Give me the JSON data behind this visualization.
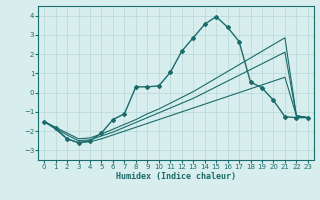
{
  "xlabel": "Humidex (Indice chaleur)",
  "ylabel": "",
  "xlim": [
    -0.5,
    23.5
  ],
  "ylim": [
    -3.5,
    4.5
  ],
  "yticks": [
    -3,
    -2,
    -1,
    0,
    1,
    2,
    3,
    4
  ],
  "xticks": [
    0,
    1,
    2,
    3,
    4,
    5,
    6,
    7,
    8,
    9,
    10,
    11,
    12,
    13,
    14,
    15,
    16,
    17,
    18,
    19,
    20,
    21,
    22,
    23
  ],
  "background_color": "#d8eeee",
  "grid_color": "#b8d8d8",
  "line_color": "#1a6b6b",
  "lines": [
    {
      "x": [
        0,
        1,
        2,
        3,
        4,
        5,
        6,
        7,
        8,
        9,
        10,
        11,
        12,
        13,
        14,
        15,
        16,
        17,
        18,
        19,
        20,
        21,
        22,
        23
      ],
      "y": [
        -1.5,
        -1.9,
        -2.4,
        -2.6,
        -2.55,
        -2.4,
        -2.2,
        -2.0,
        -1.8,
        -1.6,
        -1.4,
        -1.2,
        -1.0,
        -0.8,
        -0.6,
        -0.4,
        -0.2,
        0.0,
        0.2,
        0.4,
        0.6,
        0.8,
        -1.2,
        -1.3
      ],
      "marker": false,
      "lw": 0.8
    },
    {
      "x": [
        0,
        1,
        2,
        3,
        4,
        5,
        6,
        7,
        8,
        9,
        10,
        11,
        12,
        13,
        14,
        15,
        16,
        17,
        18,
        19,
        20,
        21,
        22,
        23
      ],
      "y": [
        -1.5,
        -1.85,
        -2.2,
        -2.5,
        -2.45,
        -2.25,
        -2.05,
        -1.8,
        -1.55,
        -1.3,
        -1.05,
        -0.8,
        -0.55,
        -0.3,
        0.0,
        0.3,
        0.6,
        0.9,
        1.2,
        1.5,
        1.8,
        2.1,
        -1.2,
        -1.3
      ],
      "marker": false,
      "lw": 0.8
    },
    {
      "x": [
        0,
        1,
        2,
        3,
        4,
        5,
        6,
        7,
        8,
        9,
        10,
        11,
        12,
        13,
        14,
        15,
        16,
        17,
        18,
        19,
        20,
        21,
        22,
        23
      ],
      "y": [
        -1.5,
        -1.8,
        -2.1,
        -2.4,
        -2.35,
        -2.15,
        -1.9,
        -1.65,
        -1.4,
        -1.1,
        -0.85,
        -0.55,
        -0.25,
        0.05,
        0.4,
        0.75,
        1.1,
        1.45,
        1.8,
        2.15,
        2.5,
        2.85,
        -1.2,
        -1.3
      ],
      "marker": false,
      "lw": 0.8
    },
    {
      "x": [
        0,
        1,
        2,
        3,
        4,
        5,
        6,
        7,
        8,
        9,
        10,
        11,
        12,
        13,
        14,
        15,
        16,
        17,
        18,
        19,
        20,
        21,
        22,
        23
      ],
      "y": [
        -1.5,
        -1.85,
        -2.4,
        -2.6,
        -2.5,
        -2.1,
        -1.4,
        -1.1,
        0.3,
        0.3,
        0.35,
        1.05,
        2.15,
        2.85,
        3.55,
        3.95,
        3.4,
        2.65,
        0.55,
        0.25,
        -0.4,
        -1.25,
        -1.3,
        -1.3
      ],
      "marker": true,
      "lw": 1.0
    }
  ]
}
